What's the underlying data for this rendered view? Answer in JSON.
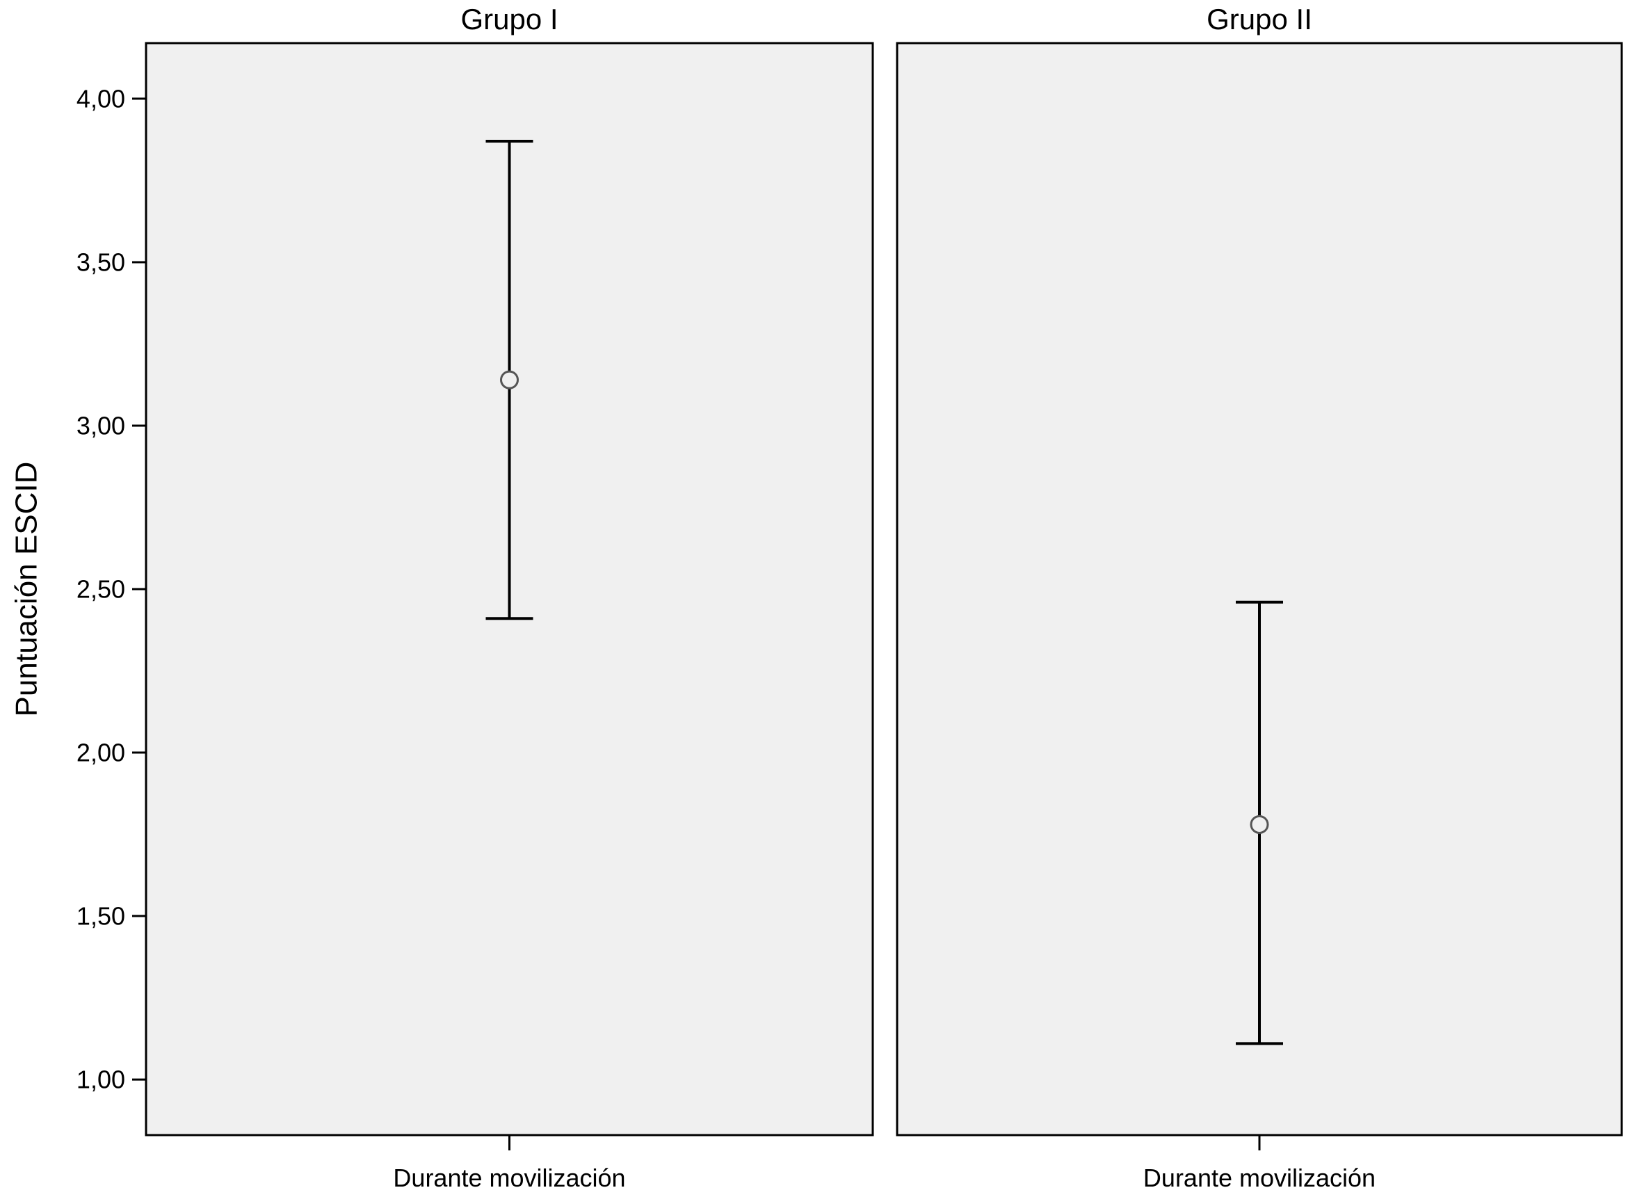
{
  "chart_data": {
    "type": "errorbar",
    "ylabel": "Puntuación ESCID",
    "ylim": [
      0.83,
      4.17
    ],
    "yticks": [
      "1,00",
      "1,50",
      "2,00",
      "2,50",
      "3,00",
      "3,50",
      "4,00"
    ],
    "ytick_values": [
      1.0,
      1.5,
      2.0,
      2.5,
      3.0,
      3.5,
      4.0
    ],
    "grid": false,
    "panels": [
      {
        "title": "Grupo I",
        "category": "Durante movilización",
        "mean": 3.14,
        "lower": 2.41,
        "upper": 3.87
      },
      {
        "title": "Grupo II",
        "category": "Durante movilización",
        "mean": 1.78,
        "lower": 1.11,
        "upper": 2.46
      }
    ]
  },
  "colors": {
    "panel_background": "#f0f0f0",
    "frame": "#000000",
    "marker": "#555555",
    "bars": "#000000"
  }
}
